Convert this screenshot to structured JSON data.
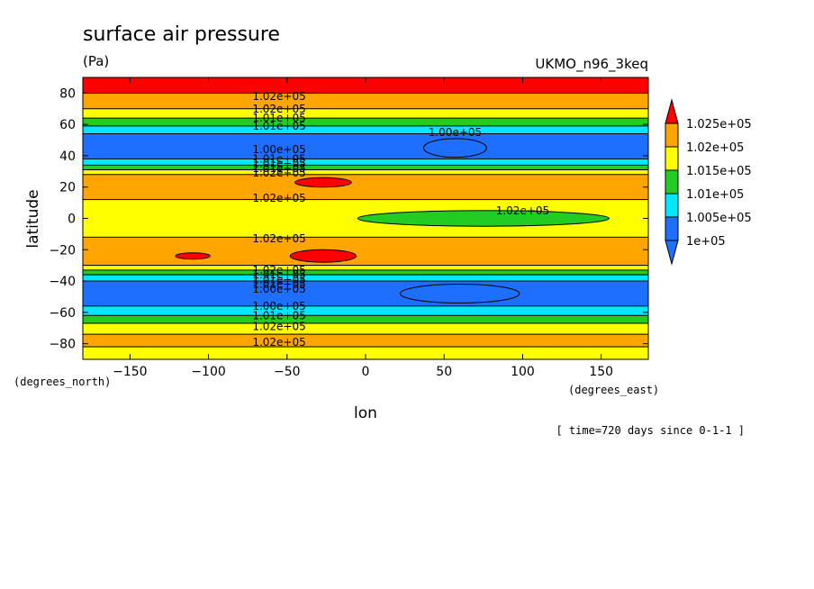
{
  "chart_data": {
    "type": "heatmap",
    "title": "surface air pressure",
    "units": "(Pa)",
    "model_label": "UKMO_n96_3keq",
    "xlabel": "lon",
    "ylabel": "latitude",
    "x_units": "(degrees_east)",
    "y_units": "(degrees_north)",
    "time_note": "[ time=720 days since 0-1-1 ]",
    "xlim": [
      -180,
      180
    ],
    "ylim": [
      -90,
      90
    ],
    "xticks": [
      -150,
      -100,
      -50,
      0,
      50,
      100,
      150
    ],
    "yticks": [
      -80,
      -60,
      -40,
      -20,
      0,
      20,
      40,
      60,
      80
    ],
    "xtick_labels": [
      "−150",
      "−100",
      "−50",
      "0",
      "50",
      "100",
      "150"
    ],
    "ytick_labels": [
      "−80",
      "−60",
      "−40",
      "−20",
      "0",
      "20",
      "40",
      "60",
      "80"
    ],
    "colorbar": {
      "levels": [
        "1e+05",
        "1.005e+05",
        "1.01e+05",
        "1.015e+05",
        "1.02e+05",
        "1.025e+05"
      ],
      "level_values": [
        100000,
        100500,
        101000,
        101500,
        102000,
        102500
      ],
      "colors": [
        "#1f6fff",
        "#00e8ff",
        "#22cc22",
        "#ffff00",
        "#ffa500",
        "#ff0000"
      ],
      "under_color": "#1f6fff",
      "over_color": "#ff0000"
    },
    "zonal_bands": [
      {
        "lat_range": [
          90,
          80
        ],
        "value": 102700
      },
      {
        "lat_range": [
          80,
          70
        ],
        "value": 102250
      },
      {
        "lat_range": [
          70,
          64
        ],
        "value": 101700
      },
      {
        "lat_range": [
          64,
          59
        ],
        "value": 101200
      },
      {
        "lat_range": [
          59,
          54
        ],
        "value": 100700
      },
      {
        "lat_range": [
          54,
          38
        ],
        "value": 100250
      },
      {
        "lat_range": [
          38,
          34
        ],
        "value": 100700
      },
      {
        "lat_range": [
          34,
          31
        ],
        "value": 101200
      },
      {
        "lat_range": [
          31,
          28
        ],
        "value": 101700
      },
      {
        "lat_range": [
          28,
          12
        ],
        "value": 102250
      },
      {
        "lat_range": [
          12,
          -12
        ],
        "value": 101700
      },
      {
        "lat_range": [
          -12,
          -30
        ],
        "value": 102250
      },
      {
        "lat_range": [
          -30,
          -33
        ],
        "value": 101700
      },
      {
        "lat_range": [
          -33,
          -36
        ],
        "value": 101200
      },
      {
        "lat_range": [
          -36,
          -40
        ],
        "value": 100700
      },
      {
        "lat_range": [
          -40,
          -56
        ],
        "value": 100250
      },
      {
        "lat_range": [
          -56,
          -62
        ],
        "value": 100700
      },
      {
        "lat_range": [
          -62,
          -67
        ],
        "value": 101200
      },
      {
        "lat_range": [
          -67,
          -74
        ],
        "value": 101700
      },
      {
        "lat_range": [
          -74,
          -82
        ],
        "value": 102250
      },
      {
        "lat_range": [
          -82,
          -90
        ],
        "value": 101700
      }
    ],
    "features": [
      {
        "kind": "high",
        "lon": -27,
        "lat": 23,
        "lon_half_width": 18,
        "lat_half_width": 3,
        "value": 102600
      },
      {
        "kind": "high",
        "lon": -27,
        "lat": -24,
        "lon_half_width": 21,
        "lat_half_width": 4,
        "value": 102600
      },
      {
        "kind": "high",
        "lon": -110,
        "lat": -24,
        "lon_half_width": 11,
        "lat_half_width": 2,
        "value": 102600
      },
      {
        "kind": "low",
        "lon": 57,
        "lat": 45,
        "lon_half_width": 20,
        "lat_half_width": 6,
        "value": 99800
      },
      {
        "kind": "low",
        "lon": 60,
        "lat": -48,
        "lon_half_width": 38,
        "lat_half_width": 6,
        "value": 99800
      },
      {
        "kind": "low",
        "lon": 75,
        "lat": 0,
        "lon_half_width": 80,
        "lat_half_width": 5,
        "value": 101300
      }
    ],
    "contour_labels": [
      {
        "lon": -55,
        "lat": 78,
        "text": "1.02e+05"
      },
      {
        "lon": -55,
        "lat": 70,
        "text": "1.02e+05"
      },
      {
        "lon": -55,
        "lat": 64,
        "text": "1.01e+05"
      },
      {
        "lon": -55,
        "lat": 59,
        "text": "1.01e+05"
      },
      {
        "lon": -55,
        "lat": 44,
        "text": "1.00e+05"
      },
      {
        "lon": -55,
        "lat": 38,
        "text": "1.01e+05"
      },
      {
        "lon": -55,
        "lat": 35,
        "text": "1.01e+05"
      },
      {
        "lon": -55,
        "lat": 32,
        "text": "1.01e+05"
      },
      {
        "lon": -55,
        "lat": 29,
        "text": "1.02e+05"
      },
      {
        "lon": 57,
        "lat": 55,
        "text": "1.00e+05"
      },
      {
        "lon": -55,
        "lat": 13,
        "text": "1.02e+05"
      },
      {
        "lon": 100,
        "lat": 5,
        "text": "1.02e+05"
      },
      {
        "lon": -55,
        "lat": -13,
        "text": "1.02e+05"
      },
      {
        "lon": -55,
        "lat": -33,
        "text": "1.02e+05"
      },
      {
        "lon": -55,
        "lat": -36,
        "text": "1.01e+05"
      },
      {
        "lon": -55,
        "lat": -39,
        "text": "1.01e+05"
      },
      {
        "lon": -55,
        "lat": -42,
        "text": "1.01e+05"
      },
      {
        "lon": -55,
        "lat": -45,
        "text": "1.00e+05"
      },
      {
        "lon": -55,
        "lat": -56,
        "text": "1.00e+05"
      },
      {
        "lon": -55,
        "lat": -62,
        "text": "1.01e+05"
      },
      {
        "lon": -55,
        "lat": -69,
        "text": "1.02e+05"
      },
      {
        "lon": -55,
        "lat": -79,
        "text": "1.02e+05"
      }
    ]
  }
}
